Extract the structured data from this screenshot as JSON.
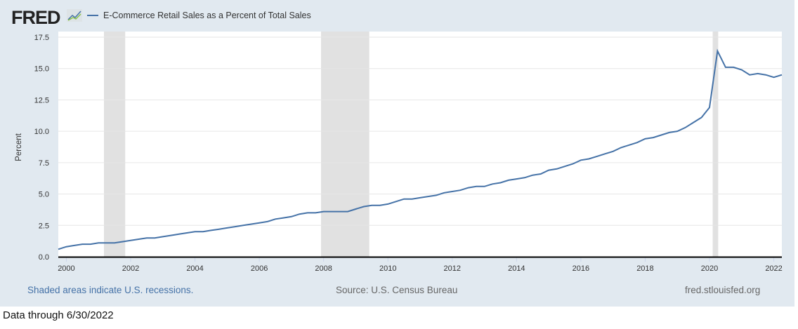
{
  "header": {
    "logo": "FRED",
    "legend": "E-Commerce Retail Sales as a Percent of Total Sales"
  },
  "footer": {
    "note": "Shaded areas indicate U.S. recessions.",
    "source": "Source: U.S. Census Bureau",
    "site": "fred.stlouisfed.org"
  },
  "data_through": "Data through 6/30/2022",
  "colors": {
    "series": "#4572a7",
    "recession": "#e1e1e1",
    "frame": "#e1e9f0"
  },
  "chart_data": {
    "type": "line",
    "title": "E-Commerce Retail Sales as a Percent of Total Sales",
    "xlabel": "",
    "ylabel": "Percent",
    "ylim": [
      0,
      17.5
    ],
    "xlim": [
      1999.75,
      2022.25
    ],
    "yticks": [
      "0.0",
      "2.5",
      "5.0",
      "7.5",
      "10.0",
      "12.5",
      "15.0",
      "17.5"
    ],
    "xticks": [
      "2000",
      "2002",
      "2004",
      "2006",
      "2008",
      "2010",
      "2012",
      "2014",
      "2016",
      "2018",
      "2020",
      "2022"
    ],
    "recessions": [
      [
        2001.17,
        2001.83
      ],
      [
        2007.92,
        2009.42
      ],
      [
        2020.1,
        2020.27
      ]
    ],
    "series": [
      {
        "name": "E-Commerce Retail Sales as a Percent of Total Sales",
        "start": 1999.75,
        "step": 0.25,
        "values": [
          0.6,
          0.8,
          0.9,
          1.0,
          1.0,
          1.1,
          1.1,
          1.1,
          1.2,
          1.3,
          1.4,
          1.5,
          1.5,
          1.6,
          1.7,
          1.8,
          1.9,
          2.0,
          2.0,
          2.1,
          2.2,
          2.3,
          2.4,
          2.5,
          2.6,
          2.7,
          2.8,
          3.0,
          3.1,
          3.2,
          3.4,
          3.5,
          3.5,
          3.6,
          3.6,
          3.6,
          3.6,
          3.8,
          4.0,
          4.1,
          4.1,
          4.2,
          4.4,
          4.6,
          4.6,
          4.7,
          4.8,
          4.9,
          5.1,
          5.2,
          5.3,
          5.5,
          5.6,
          5.6,
          5.8,
          5.9,
          6.1,
          6.2,
          6.3,
          6.5,
          6.6,
          6.9,
          7.0,
          7.2,
          7.4,
          7.7,
          7.8,
          8.0,
          8.2,
          8.4,
          8.7,
          8.9,
          9.1,
          9.4,
          9.5,
          9.7,
          9.9,
          10.0,
          10.3,
          10.7,
          11.1,
          11.9,
          16.4,
          15.1,
          15.1,
          14.9,
          14.5,
          14.6,
          14.5,
          14.3,
          14.5
        ]
      }
    ]
  }
}
